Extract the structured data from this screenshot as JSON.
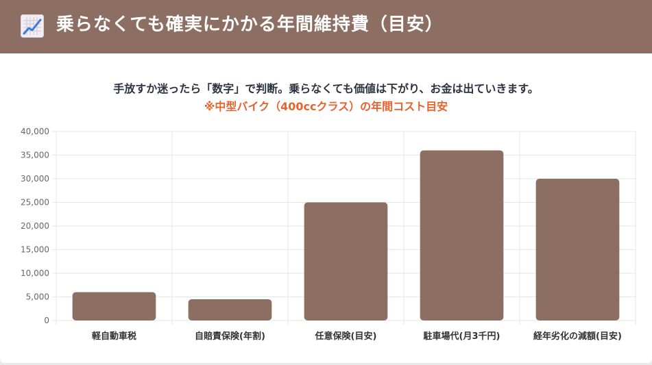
{
  "header": {
    "title": "乗らなくても確実にかかる年間維持費（目安）",
    "icon": "chart-increasing-icon"
  },
  "subtitle": "手放すか迷ったら「数字」で判断。乗らなくても価値は下がり、お金は出ていきます。",
  "note": "※中型バイク（400ccクラス）の年間コスト目安",
  "colors": {
    "header_bg": "#8c6e62",
    "bar": "#8c6e62",
    "note": "#e8622c"
  },
  "chart_data": {
    "type": "bar",
    "categories": [
      "軽自動車税",
      "自賠責保険(年割)",
      "任意保険(目安)",
      "駐車場代(月3千円)",
      "経年劣化の減額(目安)"
    ],
    "values": [
      6000,
      4500,
      25000,
      36000,
      30000
    ],
    "ylim": [
      0,
      40000
    ],
    "yticks": [
      "0",
      "5,000",
      "10,000",
      "15,000",
      "20,000",
      "25,000",
      "30,000",
      "35,000",
      "40,000"
    ],
    "grid": true,
    "legend": "none"
  }
}
